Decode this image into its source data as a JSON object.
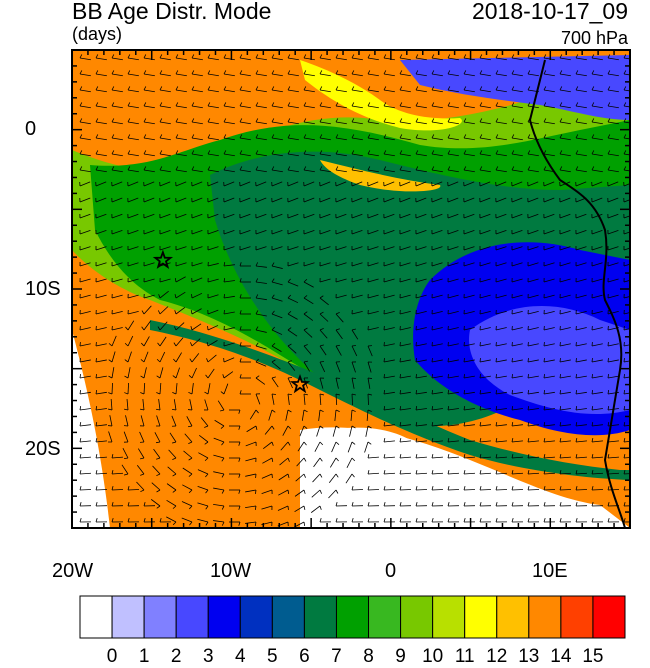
{
  "header": {
    "title": "BB Age Distr. Mode",
    "units": "(days)",
    "datetime": "2018-10-17_09",
    "level": "700 hPa"
  },
  "map": {
    "lat_labels": [
      "0",
      "10S",
      "20S"
    ],
    "lon_labels": [
      "20W",
      "10W",
      "0",
      "10E"
    ],
    "extent": {
      "lon": [
        -20,
        15
      ],
      "lat": [
        -25,
        5
      ]
    },
    "markers": [
      {
        "name": "star",
        "lon": -14.3,
        "lat": -8.2
      },
      {
        "name": "star",
        "lon": -5.7,
        "lat": -16.0
      }
    ],
    "features": [
      "coastline",
      "wind-barbs"
    ]
  },
  "colorbar": {
    "labels": [
      "0",
      "1",
      "2",
      "3",
      "4",
      "5",
      "6",
      "7",
      "8",
      "9",
      "10",
      "11",
      "12",
      "13",
      "14",
      "15"
    ],
    "colors": [
      "#ffffff",
      "#c0c0ff",
      "#8080ff",
      "#4848ff",
      "#0000f0",
      "#0030c0",
      "#005c90",
      "#007a40",
      "#00a000",
      "#38b820",
      "#78c800",
      "#b8e000",
      "#ffff00",
      "#ffc000",
      "#ff8800",
      "#ff4000",
      "#ff0000"
    ]
  },
  "colors": {
    "orange": "#ff8800",
    "dark_green": "#007a40",
    "blue": "#0000f0"
  }
}
